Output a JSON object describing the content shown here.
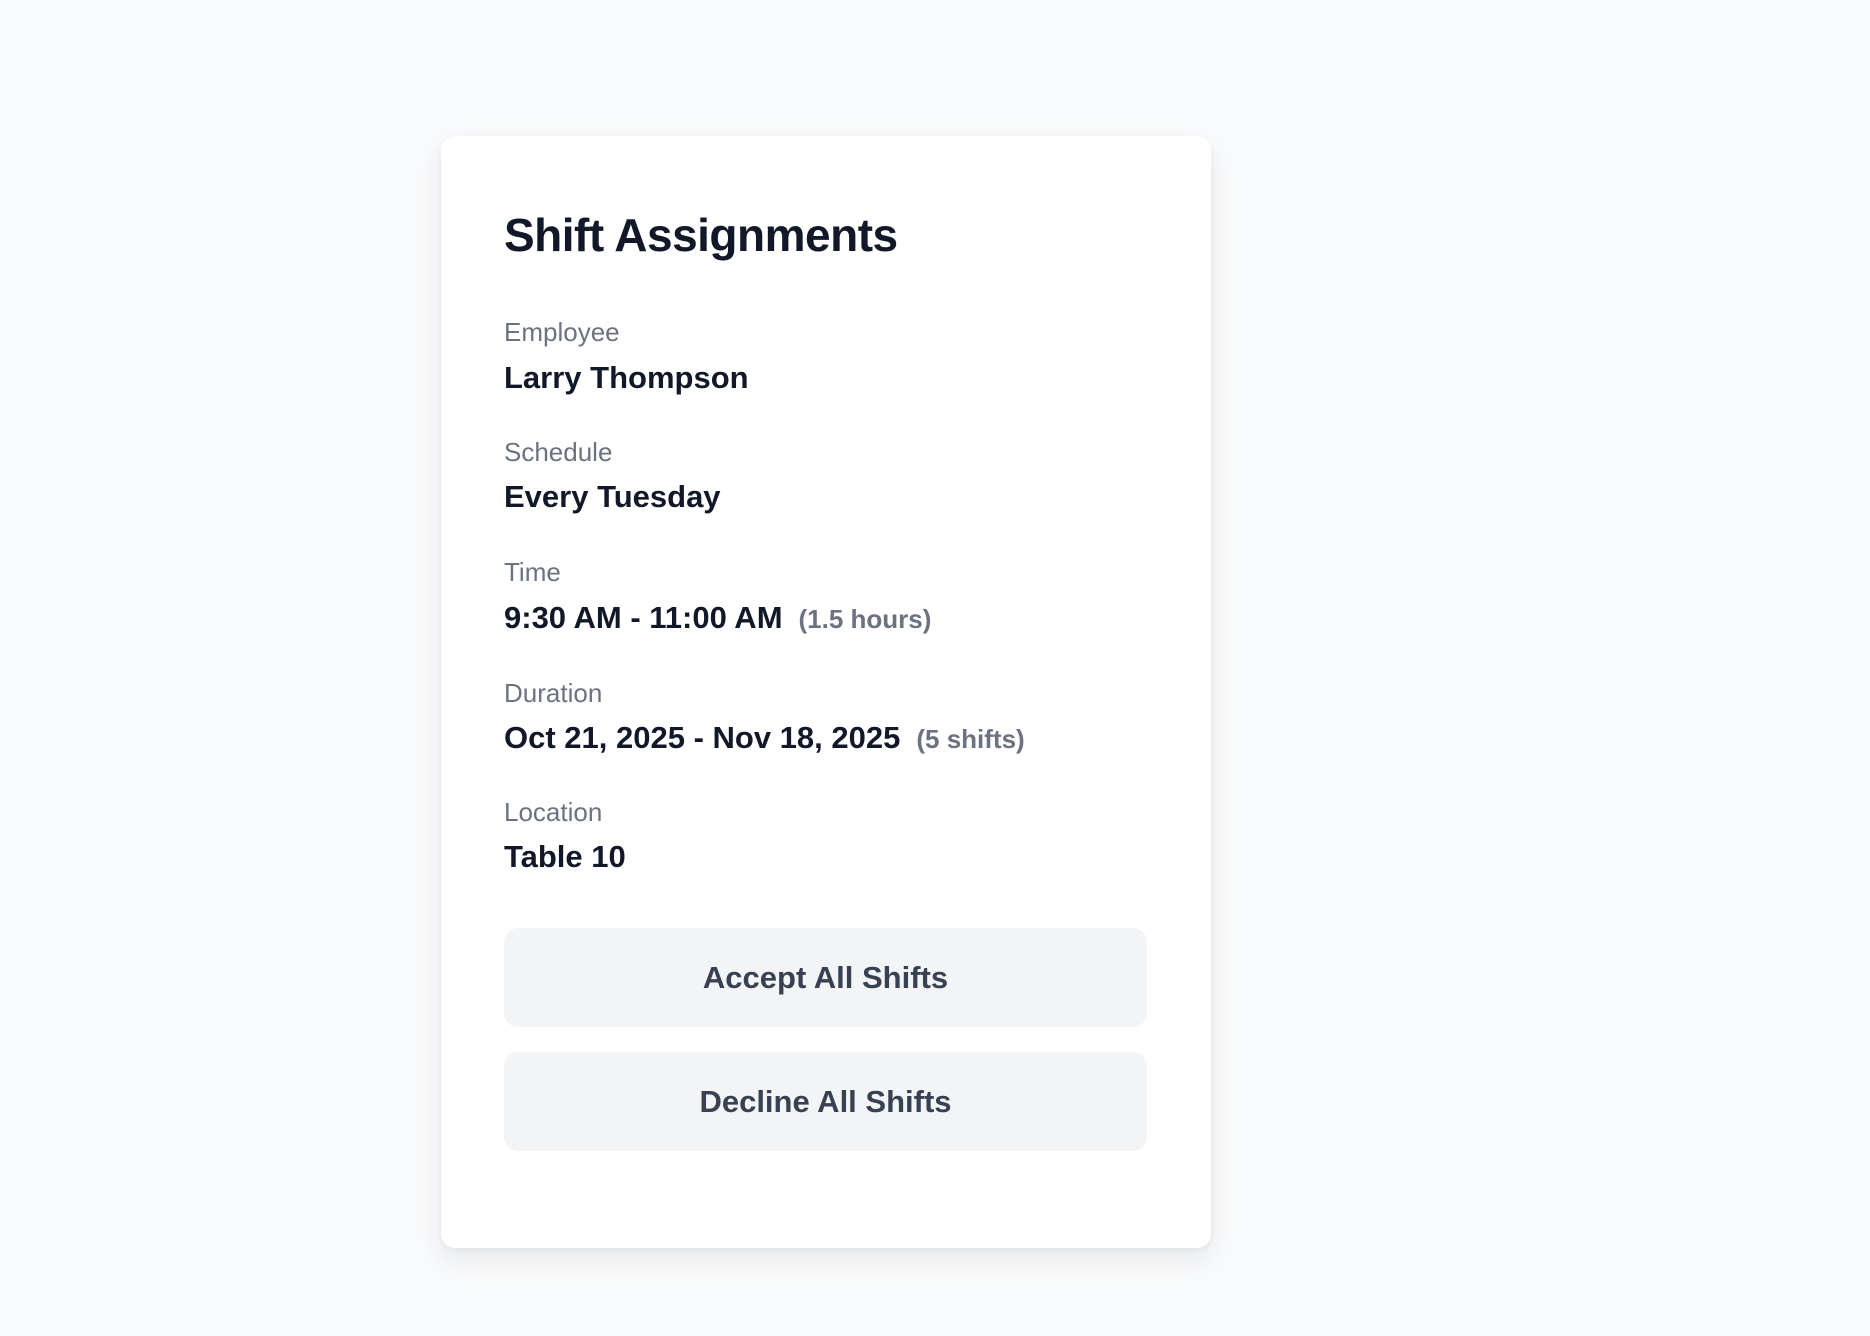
{
  "card": {
    "title": "Shift Assignments",
    "fields": [
      {
        "label": "Employee",
        "value": "Larry Thompson",
        "note": ""
      },
      {
        "label": "Schedule",
        "value": "Every Tuesday",
        "note": ""
      },
      {
        "label": "Time",
        "value": "9:30 AM - 11:00 AM",
        "note": "(1.5 hours)"
      },
      {
        "label": "Duration",
        "value": "Oct 21, 2025 - Nov 18, 2025",
        "note": "(5 shifts)"
      },
      {
        "label": "Location",
        "value": "Table 10",
        "note": ""
      }
    ],
    "accept_label": "Accept All Shifts",
    "decline_label": "Decline All Shifts"
  },
  "colors": {
    "background": "#f9fafb",
    "card": "#ffffff",
    "button": "#f3f4f6",
    "text": "#111827",
    "muted": "#6b7280"
  }
}
